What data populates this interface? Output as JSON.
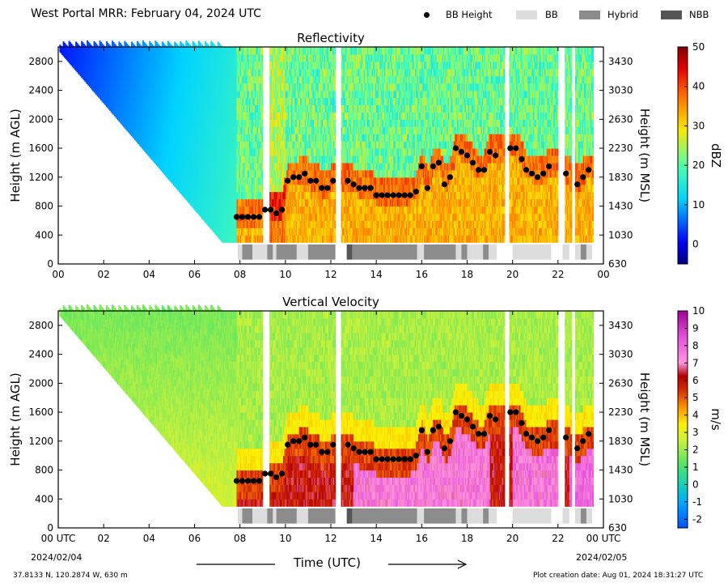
{
  "header": {
    "title": "West Portal MRR:  February 04, 2024 UTC",
    "legend": {
      "bb_height": "BB Height",
      "bb": "BB",
      "hybrid": "Hybrid",
      "nbb": "NBB"
    }
  },
  "colors": {
    "bb": "#dcdcdc",
    "hybrid": "#8c8c8c",
    "nbb": "#555555",
    "marker": "#000000"
  },
  "chart_data": [
    {
      "type": "heatmap",
      "title": "Reflectivity",
      "ylabel": "Height (m AGL)",
      "ylabel_right": "Height (m MSL)",
      "xlim": [
        0,
        24
      ],
      "ylim": [
        0,
        3000
      ],
      "x_ticks": [
        "00",
        "02",
        "04",
        "06",
        "08",
        "10",
        "12",
        "14",
        "16",
        "18",
        "20",
        "22",
        "00"
      ],
      "y_ticks": [
        0,
        400,
        800,
        1200,
        1600,
        2000,
        2400,
        2800
      ],
      "y_ticks_right": [
        "630",
        "1030",
        "1430",
        "1830",
        "2230",
        "2630",
        "3030",
        "3430"
      ],
      "colorbar": {
        "label": "dBZ",
        "range": [
          -5,
          50
        ],
        "ticks": [
          "0",
          "10",
          "20",
          "30",
          "40",
          "50"
        ]
      }
    },
    {
      "type": "heatmap",
      "title": "Vertical Velocity",
      "ylabel": "Height (m AGL)",
      "ylabel_right": "Height (m MSL)",
      "xlim": [
        0,
        24
      ],
      "ylim": [
        0,
        3000
      ],
      "x_ticks": [
        "00 UTC",
        "02",
        "04",
        "06",
        "08",
        "10",
        "12",
        "14",
        "16",
        "18",
        "20",
        "22",
        "00 UTC"
      ],
      "y_ticks": [
        0,
        400,
        800,
        1200,
        1600,
        2000,
        2400,
        2800
      ],
      "y_ticks_right": [
        "630",
        "1030",
        "1430",
        "1830",
        "2230",
        "2630",
        "3030",
        "3430"
      ],
      "colorbar": {
        "label": "m/s",
        "range": [
          -2.5,
          10
        ],
        "ticks": [
          "-2",
          "-1",
          "0",
          "1",
          "2",
          "3",
          "4",
          "5",
          "6",
          "7",
          "8",
          "9",
          "10"
        ]
      }
    }
  ],
  "bb_height": {
    "x": [
      7.85,
      8.1,
      8.35,
      8.6,
      8.85,
      9.1,
      9.35,
      9.6,
      9.85,
      10.1,
      10.35,
      10.6,
      10.85,
      11.1,
      11.35,
      11.6,
      11.85,
      12.1,
      12.75,
      13.0,
      13.25,
      13.5,
      13.75,
      14.0,
      14.25,
      14.5,
      14.75,
      15.0,
      15.25,
      15.5,
      15.75,
      16.0,
      16.25,
      16.5,
      16.75,
      17.0,
      17.25,
      17.5,
      17.75,
      18.0,
      18.25,
      18.5,
      18.75,
      19.0,
      19.25,
      19.9,
      20.15,
      20.4,
      20.6,
      20.85,
      21.1,
      21.35,
      21.6,
      22.35,
      22.85,
      23.1,
      23.35
    ],
    "y": [
      650,
      650,
      650,
      650,
      650,
      750,
      750,
      700,
      750,
      1150,
      1200,
      1200,
      1250,
      1150,
      1150,
      1050,
      1050,
      1150,
      1150,
      1100,
      1050,
      1050,
      1050,
      950,
      950,
      950,
      950,
      950,
      950,
      950,
      1000,
      1350,
      1050,
      1350,
      1400,
      1100,
      1200,
      1600,
      1550,
      1500,
      1400,
      1300,
      1300,
      1550,
      1500,
      1600,
      1600,
      1450,
      1300,
      1250,
      1200,
      1250,
      1350,
      1250,
      1100,
      1200,
      1300
    ],
    "label": "BB Height"
  },
  "bb_class": [
    {
      "start": 7.9,
      "end": 8.1,
      "cls": "bb"
    },
    {
      "start": 8.1,
      "end": 8.55,
      "cls": "hybrid"
    },
    {
      "start": 8.55,
      "end": 9.2,
      "cls": "bb"
    },
    {
      "start": 9.2,
      "end": 9.45,
      "cls": "hybrid"
    },
    {
      "start": 9.45,
      "end": 9.6,
      "cls": "bb"
    },
    {
      "start": 9.6,
      "end": 10.5,
      "cls": "hybrid"
    },
    {
      "start": 10.5,
      "end": 11.0,
      "cls": "bb"
    },
    {
      "start": 11.0,
      "end": 12.2,
      "cls": "hybrid"
    },
    {
      "start": 12.7,
      "end": 12.95,
      "cls": "nbb"
    },
    {
      "start": 12.95,
      "end": 15.8,
      "cls": "hybrid"
    },
    {
      "start": 15.8,
      "end": 16.1,
      "cls": "bb"
    },
    {
      "start": 16.1,
      "end": 17.5,
      "cls": "hybrid"
    },
    {
      "start": 17.5,
      "end": 17.75,
      "cls": "bb"
    },
    {
      "start": 17.75,
      "end": 18.0,
      "cls": "hybrid"
    },
    {
      "start": 18.0,
      "end": 18.7,
      "cls": "bb"
    },
    {
      "start": 18.7,
      "end": 18.95,
      "cls": "hybrid"
    },
    {
      "start": 18.95,
      "end": 19.3,
      "cls": "bb"
    },
    {
      "start": 20.0,
      "end": 21.7,
      "cls": "bb"
    },
    {
      "start": 22.2,
      "end": 22.5,
      "cls": "bb"
    },
    {
      "start": 22.75,
      "end": 23.0,
      "cls": "bb"
    },
    {
      "start": 23.0,
      "end": 23.25,
      "cls": "hybrid"
    },
    {
      "start": 23.25,
      "end": 23.5,
      "cls": "bb"
    }
  ],
  "footer": {
    "date_left": "2024/02/04",
    "date_right": "2024/02/05",
    "xlabel": "Time (UTC)",
    "location": "37.8133 N, 120.2874 W, 630 m",
    "creation": "Plot creation date: Aug 01, 2024 18:31:27 UTC"
  }
}
